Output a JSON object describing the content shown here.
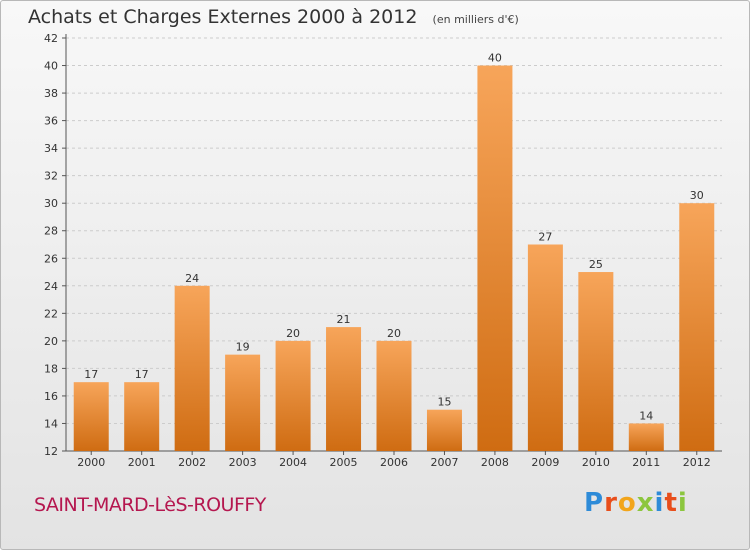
{
  "header": {
    "title": "Achats et Charges Externes 2000 à 2012",
    "subtitle": "(en milliers d'€)"
  },
  "footer": {
    "commune": "SAINT-MARD-LèS-ROUFFY",
    "logo_text": "Proxiti"
  },
  "colors": {
    "bar_top": "#f7a55a",
    "bar_bottom": "#cf6c12",
    "grid": "#cccccc",
    "commune_text": "#b5174f",
    "logo_letters": [
      "#2e8bd8",
      "#e84e1b",
      "#f2a51b",
      "#8cc63e",
      "#2e8bd8",
      "#e84e1b",
      "#8cc63e"
    ]
  },
  "chart_data": {
    "type": "bar",
    "title": "Achats et Charges Externes 2000 à 2012",
    "subtitle": "(en milliers d'€)",
    "categories": [
      "2000",
      "2001",
      "2002",
      "2003",
      "2004",
      "2005",
      "2006",
      "2007",
      "2008",
      "2009",
      "2010",
      "2011",
      "2012"
    ],
    "values": [
      17,
      17,
      24,
      19,
      20,
      21,
      20,
      15,
      40,
      27,
      25,
      14,
      30
    ],
    "ylim": [
      12,
      42
    ],
    "yticks": [
      12,
      14,
      16,
      18,
      20,
      22,
      24,
      26,
      28,
      30,
      32,
      34,
      36,
      38,
      40,
      42
    ],
    "grid": true,
    "grid_style": "dashed",
    "xlabel": "",
    "ylabel": ""
  }
}
